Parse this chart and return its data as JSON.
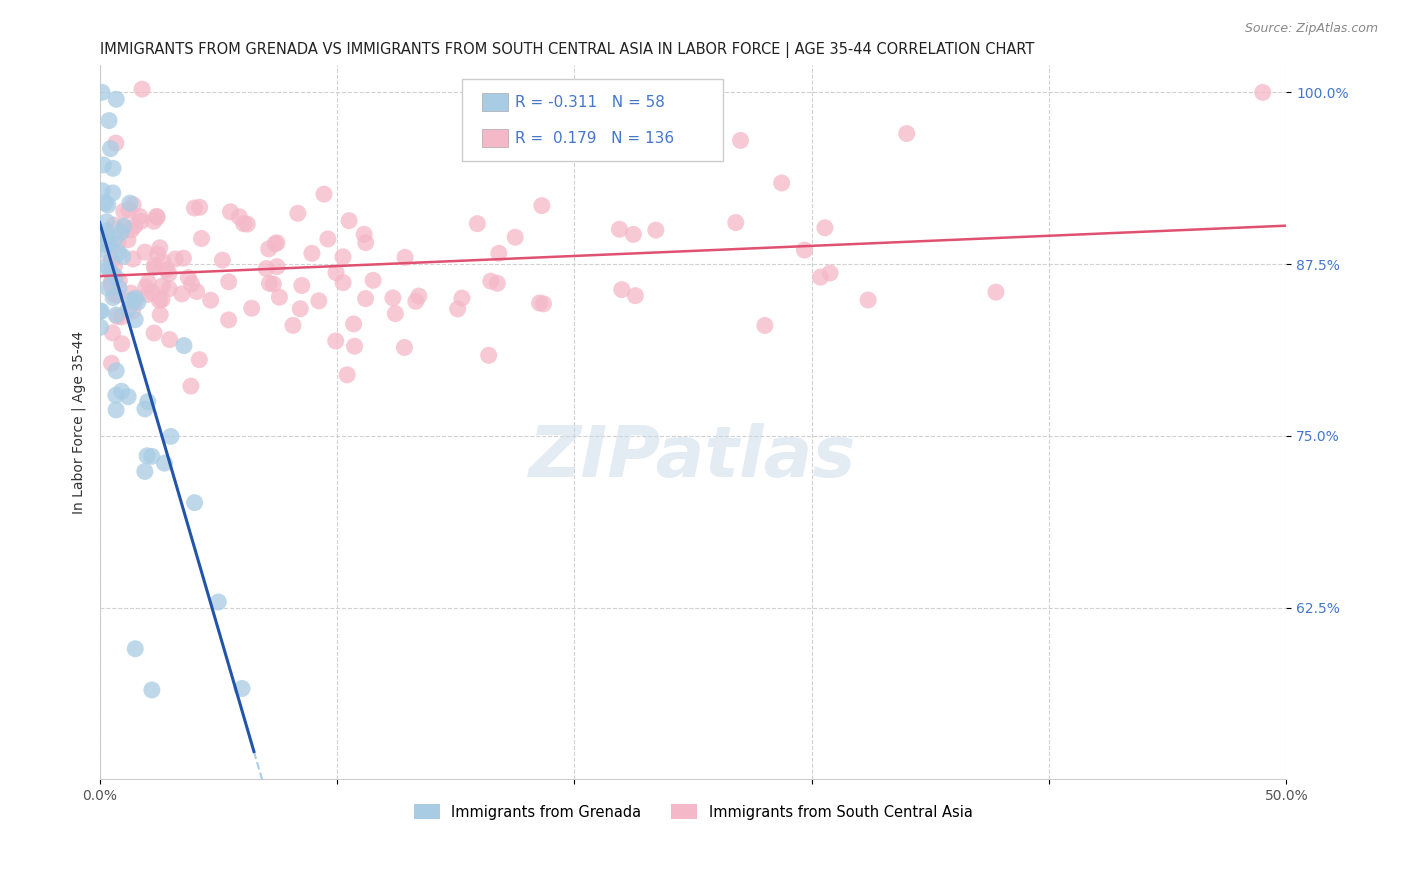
{
  "title": "IMMIGRANTS FROM GRENADA VS IMMIGRANTS FROM SOUTH CENTRAL ASIA IN LABOR FORCE | AGE 35-44 CORRELATION CHART",
  "source": "Source: ZipAtlas.com",
  "xlabel_grenada": "Immigrants from Grenada",
  "xlabel_sca": "Immigrants from South Central Asia",
  "ylabel": "In Labor Force | Age 35-44",
  "xlim": [
    0.0,
    0.5
  ],
  "ylim": [
    0.5,
    1.02
  ],
  "yticks": [
    0.625,
    0.75,
    0.875,
    1.0
  ],
  "ytick_labels": [
    "62.5%",
    "75.0%",
    "87.5%",
    "100.0%"
  ],
  "xticks": [
    0.0,
    0.1,
    0.2,
    0.3,
    0.4,
    0.5
  ],
  "xtick_labels": [
    "0.0%",
    "",
    "",
    "",
    "",
    "50.0%"
  ],
  "grenada_R": -0.311,
  "grenada_N": 58,
  "sca_R": 0.179,
  "sca_N": 136,
  "blue_color": "#a8cce4",
  "pink_color": "#f4b8c8",
  "blue_line_color": "#2255aa",
  "pink_line_color": "#e05070",
  "blue_dash_color": "#aaccee",
  "tick_color": "#4477cc",
  "watermark_color": "#d0dde8",
  "title_fontsize": 10.5,
  "axis_label_fontsize": 10,
  "tick_fontsize": 10,
  "legend_fontsize": 11
}
